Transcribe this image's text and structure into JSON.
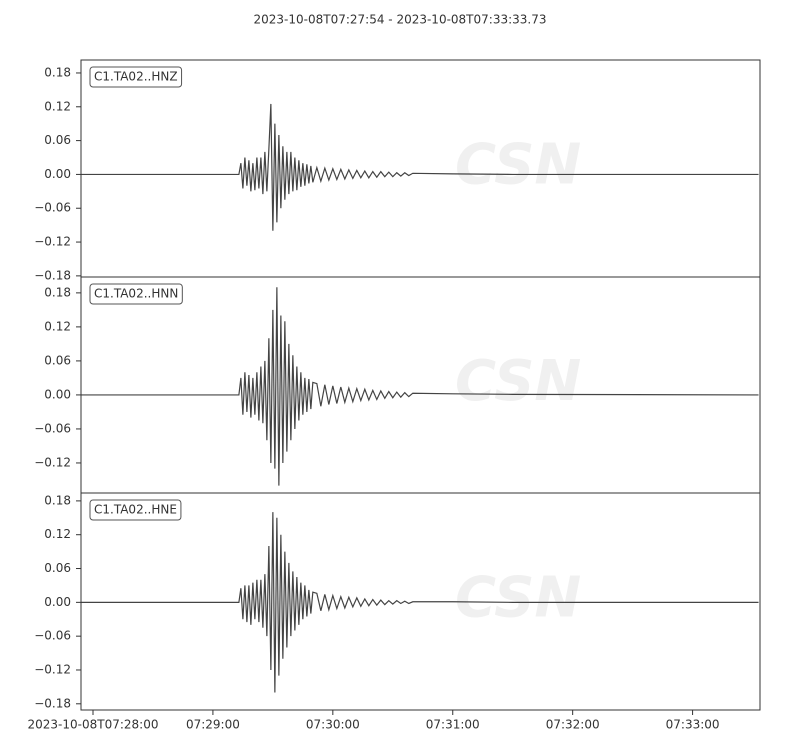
{
  "chart_data": {
    "type": "line",
    "title": "2023-10-08T07:27:54  -  2023-10-08T07:33:33.73",
    "watermark": "CSN",
    "color": "#444444",
    "xlim": [
      "2023-10-08T07:27:54",
      "2023-10-08T07:33:33.73"
    ],
    "xticks": [
      "2023-10-08T07:28:00",
      "07:29:00",
      "07:30:00",
      "07:31:00",
      "07:32:00",
      "07:33:00"
    ],
    "x": [
      "07:27:54",
      "07:29:13",
      "07:29:14",
      "07:29:15",
      "07:29:16",
      "07:29:17",
      "07:29:18",
      "07:29:19",
      "07:29:20",
      "07:29:21",
      "07:29:22",
      "07:29:23",
      "07:29:24",
      "07:29:25",
      "07:29:26",
      "07:29:27",
      "07:29:28",
      "07:29:29",
      "07:29:30",
      "07:29:31",
      "07:29:32",
      "07:29:33",
      "07:29:34",
      "07:29:35",
      "07:29:36",
      "07:29:37",
      "07:29:38",
      "07:29:39",
      "07:29:40",
      "07:29:41",
      "07:29:42",
      "07:29:43",
      "07:29:44",
      "07:29:45",
      "07:29:46",
      "07:29:47",
      "07:29:48",
      "07:29:49",
      "07:29:50",
      "07:29:52",
      "07:29:54",
      "07:29:56",
      "07:29:58",
      "07:30:00",
      "07:30:02",
      "07:30:04",
      "07:30:06",
      "07:30:08",
      "07:30:10",
      "07:30:12",
      "07:30:14",
      "07:30:16",
      "07:30:18",
      "07:30:20",
      "07:30:22",
      "07:30:24",
      "07:30:26",
      "07:30:28",
      "07:30:30",
      "07:30:32",
      "07:30:34",
      "07:30:36",
      "07:30:38",
      "07:30:40",
      "07:31:00",
      "07:31:30",
      "07:33:33"
    ],
    "series": [
      {
        "name": "C1.TA02..HNZ",
        "ylim": [
          -0.182,
          0.203
        ],
        "yticks": [
          0.18,
          0.12,
          0.06,
          {
            "value": 0,
            "label": "0.00"
          },
          {
            "value": -0.06,
            "label": "−0.06"
          },
          {
            "value": -0.12,
            "label": "−0.12"
          },
          {
            "value": -0.18,
            "label": "−0.18"
          }
        ],
        "values": [
          0,
          0,
          0.02,
          -0.025,
          0.03,
          -0.02,
          0.025,
          -0.03,
          0.02,
          -0.028,
          0.03,
          -0.025,
          0.03,
          -0.035,
          0.04,
          -0.03,
          0.045,
          0.125,
          -0.1,
          0.09,
          -0.085,
          0.07,
          -0.06,
          0.05,
          -0.045,
          0.04,
          -0.035,
          0.04,
          -0.03,
          0.03,
          -0.028,
          0.025,
          -0.022,
          0.02,
          -0.02,
          0.018,
          -0.016,
          0.015,
          -0.014,
          0.012,
          -0.012,
          0.011,
          -0.01,
          0.01,
          -0.009,
          0.009,
          -0.008,
          0.008,
          -0.007,
          0.007,
          -0.006,
          0.006,
          -0.006,
          0.005,
          -0.005,
          0.005,
          -0.004,
          0.004,
          -0.004,
          0.003,
          -0.003,
          0.003,
          -0.002,
          0.002,
          0.001,
          0,
          0
        ]
      },
      {
        "name": "C1.TA02..HNN",
        "ylim": [
          -0.173,
          0.208
        ],
        "yticks": [
          0.18,
          0.12,
          0.06,
          {
            "value": 0,
            "label": "0.00"
          },
          {
            "value": -0.06,
            "label": "−0.06"
          },
          {
            "value": -0.12,
            "label": "−0.12"
          }
        ],
        "values": [
          0,
          0,
          0.03,
          -0.035,
          0.04,
          -0.03,
          0.035,
          -0.04,
          0.03,
          -0.035,
          0.04,
          -0.045,
          0.05,
          -0.05,
          0.06,
          -0.08,
          0.1,
          -0.12,
          0.15,
          -0.13,
          0.19,
          -0.16,
          0.14,
          -0.12,
          0.13,
          -0.1,
          0.09,
          -0.08,
          0.07,
          -0.06,
          0.05,
          -0.045,
          0.04,
          -0.035,
          0.03,
          -0.03,
          0.028,
          -0.025,
          0.022,
          0.02,
          -0.02,
          0.018,
          -0.017,
          0.016,
          -0.015,
          0.014,
          -0.013,
          0.012,
          -0.012,
          0.011,
          -0.01,
          0.01,
          -0.009,
          0.008,
          -0.008,
          0.007,
          -0.006,
          0.006,
          -0.005,
          0.005,
          -0.004,
          0.004,
          -0.003,
          0.003,
          0.002,
          0.001,
          0
        ]
      },
      {
        "name": "C1.TA02..HNE",
        "ylim": [
          -0.191,
          0.194
        ],
        "yticks": [
          0.18,
          0.12,
          0.06,
          {
            "value": 0,
            "label": "0.00"
          },
          {
            "value": -0.06,
            "label": "−0.06"
          },
          {
            "value": -0.12,
            "label": "−0.12"
          },
          {
            "value": -0.18,
            "label": "−0.18"
          }
        ],
        "values": [
          0,
          0,
          0.025,
          -0.03,
          0.03,
          -0.035,
          0.03,
          -0.04,
          0.035,
          -0.03,
          0.04,
          -0.035,
          0.04,
          -0.045,
          0.05,
          -0.06,
          0.1,
          -0.12,
          0.16,
          -0.16,
          0.15,
          -0.13,
          0.12,
          -0.1,
          0.09,
          -0.08,
          0.07,
          -0.06,
          0.055,
          -0.05,
          0.045,
          -0.04,
          0.035,
          -0.03,
          0.03,
          -0.025,
          0.022,
          -0.02,
          0.018,
          0.016,
          -0.015,
          0.014,
          -0.013,
          0.012,
          -0.011,
          0.01,
          -0.01,
          0.009,
          -0.008,
          0.008,
          -0.007,
          0.006,
          -0.006,
          0.005,
          -0.005,
          0.004,
          -0.004,
          0.003,
          -0.003,
          0.003,
          -0.002,
          0.002,
          -0.002,
          0.001,
          0.001,
          0,
          0
        ]
      }
    ]
  }
}
